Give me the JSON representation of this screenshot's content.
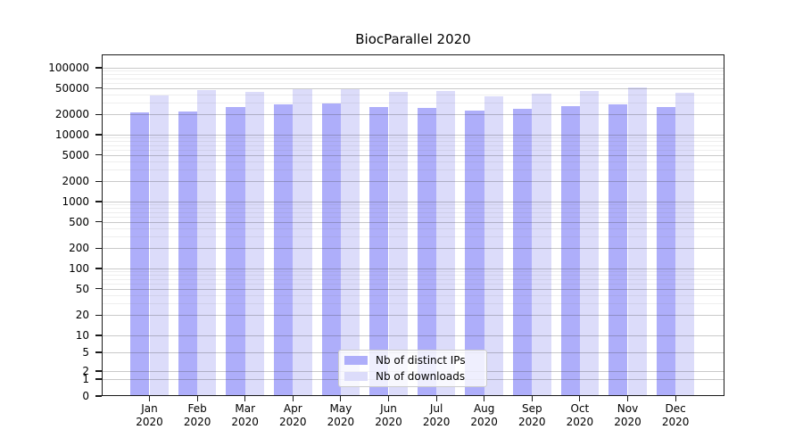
{
  "title": "BiocParallel 2020",
  "legend": {
    "items": [
      {
        "label": "Nb of distinct IPs"
      },
      {
        "label": "Nb of downloads"
      }
    ]
  },
  "chart_data": {
    "type": "bar",
    "title": "BiocParallel 2020",
    "scale": "symlog",
    "grid": true,
    "legend_position": "lower center",
    "categories": [
      "Jan",
      "Feb",
      "Mar",
      "Apr",
      "May",
      "Jun",
      "Jul",
      "Aug",
      "Sep",
      "Oct",
      "Nov",
      "Dec"
    ],
    "year": "2020",
    "series": [
      {
        "name": "Nb of distinct IPs",
        "color": "#aeaefa",
        "values": [
          21500,
          22500,
          26000,
          28500,
          29500,
          26000,
          25500,
          23000,
          24000,
          27000,
          28500,
          26000
        ]
      },
      {
        "name": "Nb of downloads",
        "color": "#dcdcfa",
        "values": [
          38500,
          47000,
          44000,
          47500,
          48500,
          44000,
          45500,
          38000,
          41500,
          45000,
          51500,
          42000
        ]
      }
    ],
    "xlabel": "",
    "ylabel": "",
    "y_ticks": [
      100000,
      50000,
      20000,
      10000,
      5000,
      2000,
      1000,
      500,
      200,
      100,
      50,
      20,
      10,
      5,
      2,
      1,
      0
    ],
    "ylim": [
      0,
      160000
    ]
  }
}
